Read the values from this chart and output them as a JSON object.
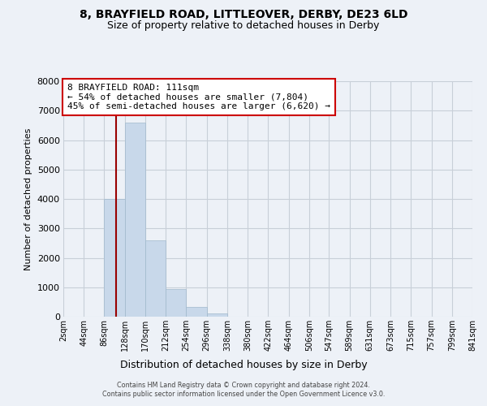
{
  "title1": "8, BRAYFIELD ROAD, LITTLEOVER, DERBY, DE23 6LD",
  "title2": "Size of property relative to detached houses in Derby",
  "xlabel": "Distribution of detached houses by size in Derby",
  "ylabel": "Number of detached properties",
  "bin_labels": [
    "2sqm",
    "44sqm",
    "86sqm",
    "128sqm",
    "170sqm",
    "212sqm",
    "254sqm",
    "296sqm",
    "338sqm",
    "380sqm",
    "422sqm",
    "464sqm",
    "506sqm",
    "547sqm",
    "589sqm",
    "631sqm",
    "673sqm",
    "715sqm",
    "757sqm",
    "799sqm",
    "841sqm"
  ],
  "bin_edges": [
    2,
    44,
    86,
    128,
    170,
    212,
    254,
    296,
    338,
    380,
    422,
    464,
    506,
    547,
    589,
    631,
    673,
    715,
    757,
    799,
    841
  ],
  "bar_heights": [
    0,
    0,
    4000,
    6600,
    2600,
    950,
    330,
    120,
    0,
    0,
    0,
    0,
    0,
    0,
    0,
    0,
    0,
    0,
    0,
    0
  ],
  "bar_color": "#c8d8ea",
  "bar_edgecolor": "#a0b8cc",
  "vline_x": 111,
  "vline_color": "#990000",
  "ylim": [
    0,
    8000
  ],
  "yticks": [
    0,
    1000,
    2000,
    3000,
    4000,
    5000,
    6000,
    7000,
    8000
  ],
  "annotation_title": "8 BRAYFIELD ROAD: 111sqm",
  "annotation_line1": "← 54% of detached houses are smaller (7,804)",
  "annotation_line2": "45% of semi-detached houses are larger (6,620) →",
  "annotation_box_facecolor": "#ffffff",
  "annotation_box_edgecolor": "#cc0000",
  "footer1": "Contains HM Land Registry data © Crown copyright and database right 2024.",
  "footer2": "Contains public sector information licensed under the Open Government Licence v3.0.",
  "bg_color": "#edf1f7",
  "plot_bg_color": "#edf1f7",
  "grid_color": "#c8cfd8"
}
